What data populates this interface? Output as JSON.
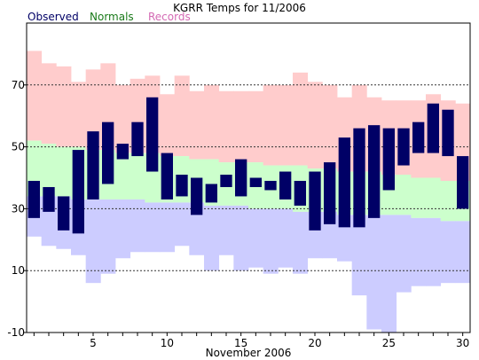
{
  "chart_data": {
    "type": "bar",
    "title": "KGRR Temps for 11/2006",
    "xlabel": "November 2006",
    "ylabel": "",
    "ylim": [
      -10,
      90
    ],
    "xlim": [
      0.5,
      30.5
    ],
    "yticks": [
      -10,
      10,
      30,
      50,
      70
    ],
    "xticks": [
      5,
      10,
      15,
      20,
      25,
      30
    ],
    "grid": "horizontal dashed at y ticks",
    "legend_position": "top-left",
    "legend": [
      {
        "name": "Observed",
        "color": "#000066"
      },
      {
        "name": "Normals",
        "color": "#1a7a1a"
      },
      {
        "name": "Records",
        "color": "#d46ab4"
      }
    ],
    "colors": {
      "observed": "#000066",
      "normals": "#ccffcc",
      "records": "#ffcccc",
      "record_low": "#ccccff"
    },
    "days": [
      1,
      2,
      3,
      4,
      5,
      6,
      7,
      8,
      9,
      10,
      11,
      12,
      13,
      14,
      15,
      16,
      17,
      18,
      19,
      20,
      21,
      22,
      23,
      24,
      25,
      26,
      27,
      28,
      29,
      30
    ],
    "record_high": [
      81,
      77,
      76,
      71,
      75,
      77,
      70,
      72,
      73,
      67,
      73,
      68,
      70,
      68,
      68,
      68,
      70,
      70,
      74,
      71,
      70,
      66,
      70,
      66,
      65,
      65,
      65,
      67,
      65,
      64
    ],
    "record_low": [
      21,
      18,
      17,
      15,
      6,
      9,
      14,
      16,
      16,
      16,
      18,
      15,
      10,
      15,
      10,
      11,
      9,
      11,
      9,
      14,
      14,
      13,
      2,
      -9,
      -10,
      3,
      5,
      5,
      6,
      6
    ],
    "normal_high": [
      52,
      51,
      50,
      50,
      49,
      49,
      48,
      48,
      48,
      47,
      47,
      46,
      46,
      45,
      45,
      45,
      44,
      44,
      44,
      43,
      43,
      42,
      42,
      42,
      41,
      41,
      40,
      40,
      39,
      39
    ],
    "normal_low": [
      34,
      34,
      34,
      33,
      33,
      33,
      33,
      33,
      32,
      32,
      32,
      32,
      31,
      31,
      31,
      30,
      30,
      30,
      29,
      29,
      29,
      28,
      28,
      28,
      28,
      28,
      27,
      27,
      26,
      26
    ],
    "observed_high": [
      39,
      37,
      34,
      49,
      55,
      58,
      51,
      58,
      66,
      48,
      41,
      40,
      38,
      41,
      46,
      40,
      39,
      42,
      39,
      42,
      45,
      53,
      56,
      57,
      56,
      56,
      58,
      64,
      62,
      47
    ],
    "observed_low": [
      27,
      29,
      23,
      22,
      33,
      38,
      46,
      47,
      42,
      33,
      34,
      28,
      32,
      37,
      34,
      37,
      36,
      33,
      31,
      23,
      25,
      24,
      24,
      27,
      36,
      44,
      48,
      48,
      47,
      30
    ]
  }
}
